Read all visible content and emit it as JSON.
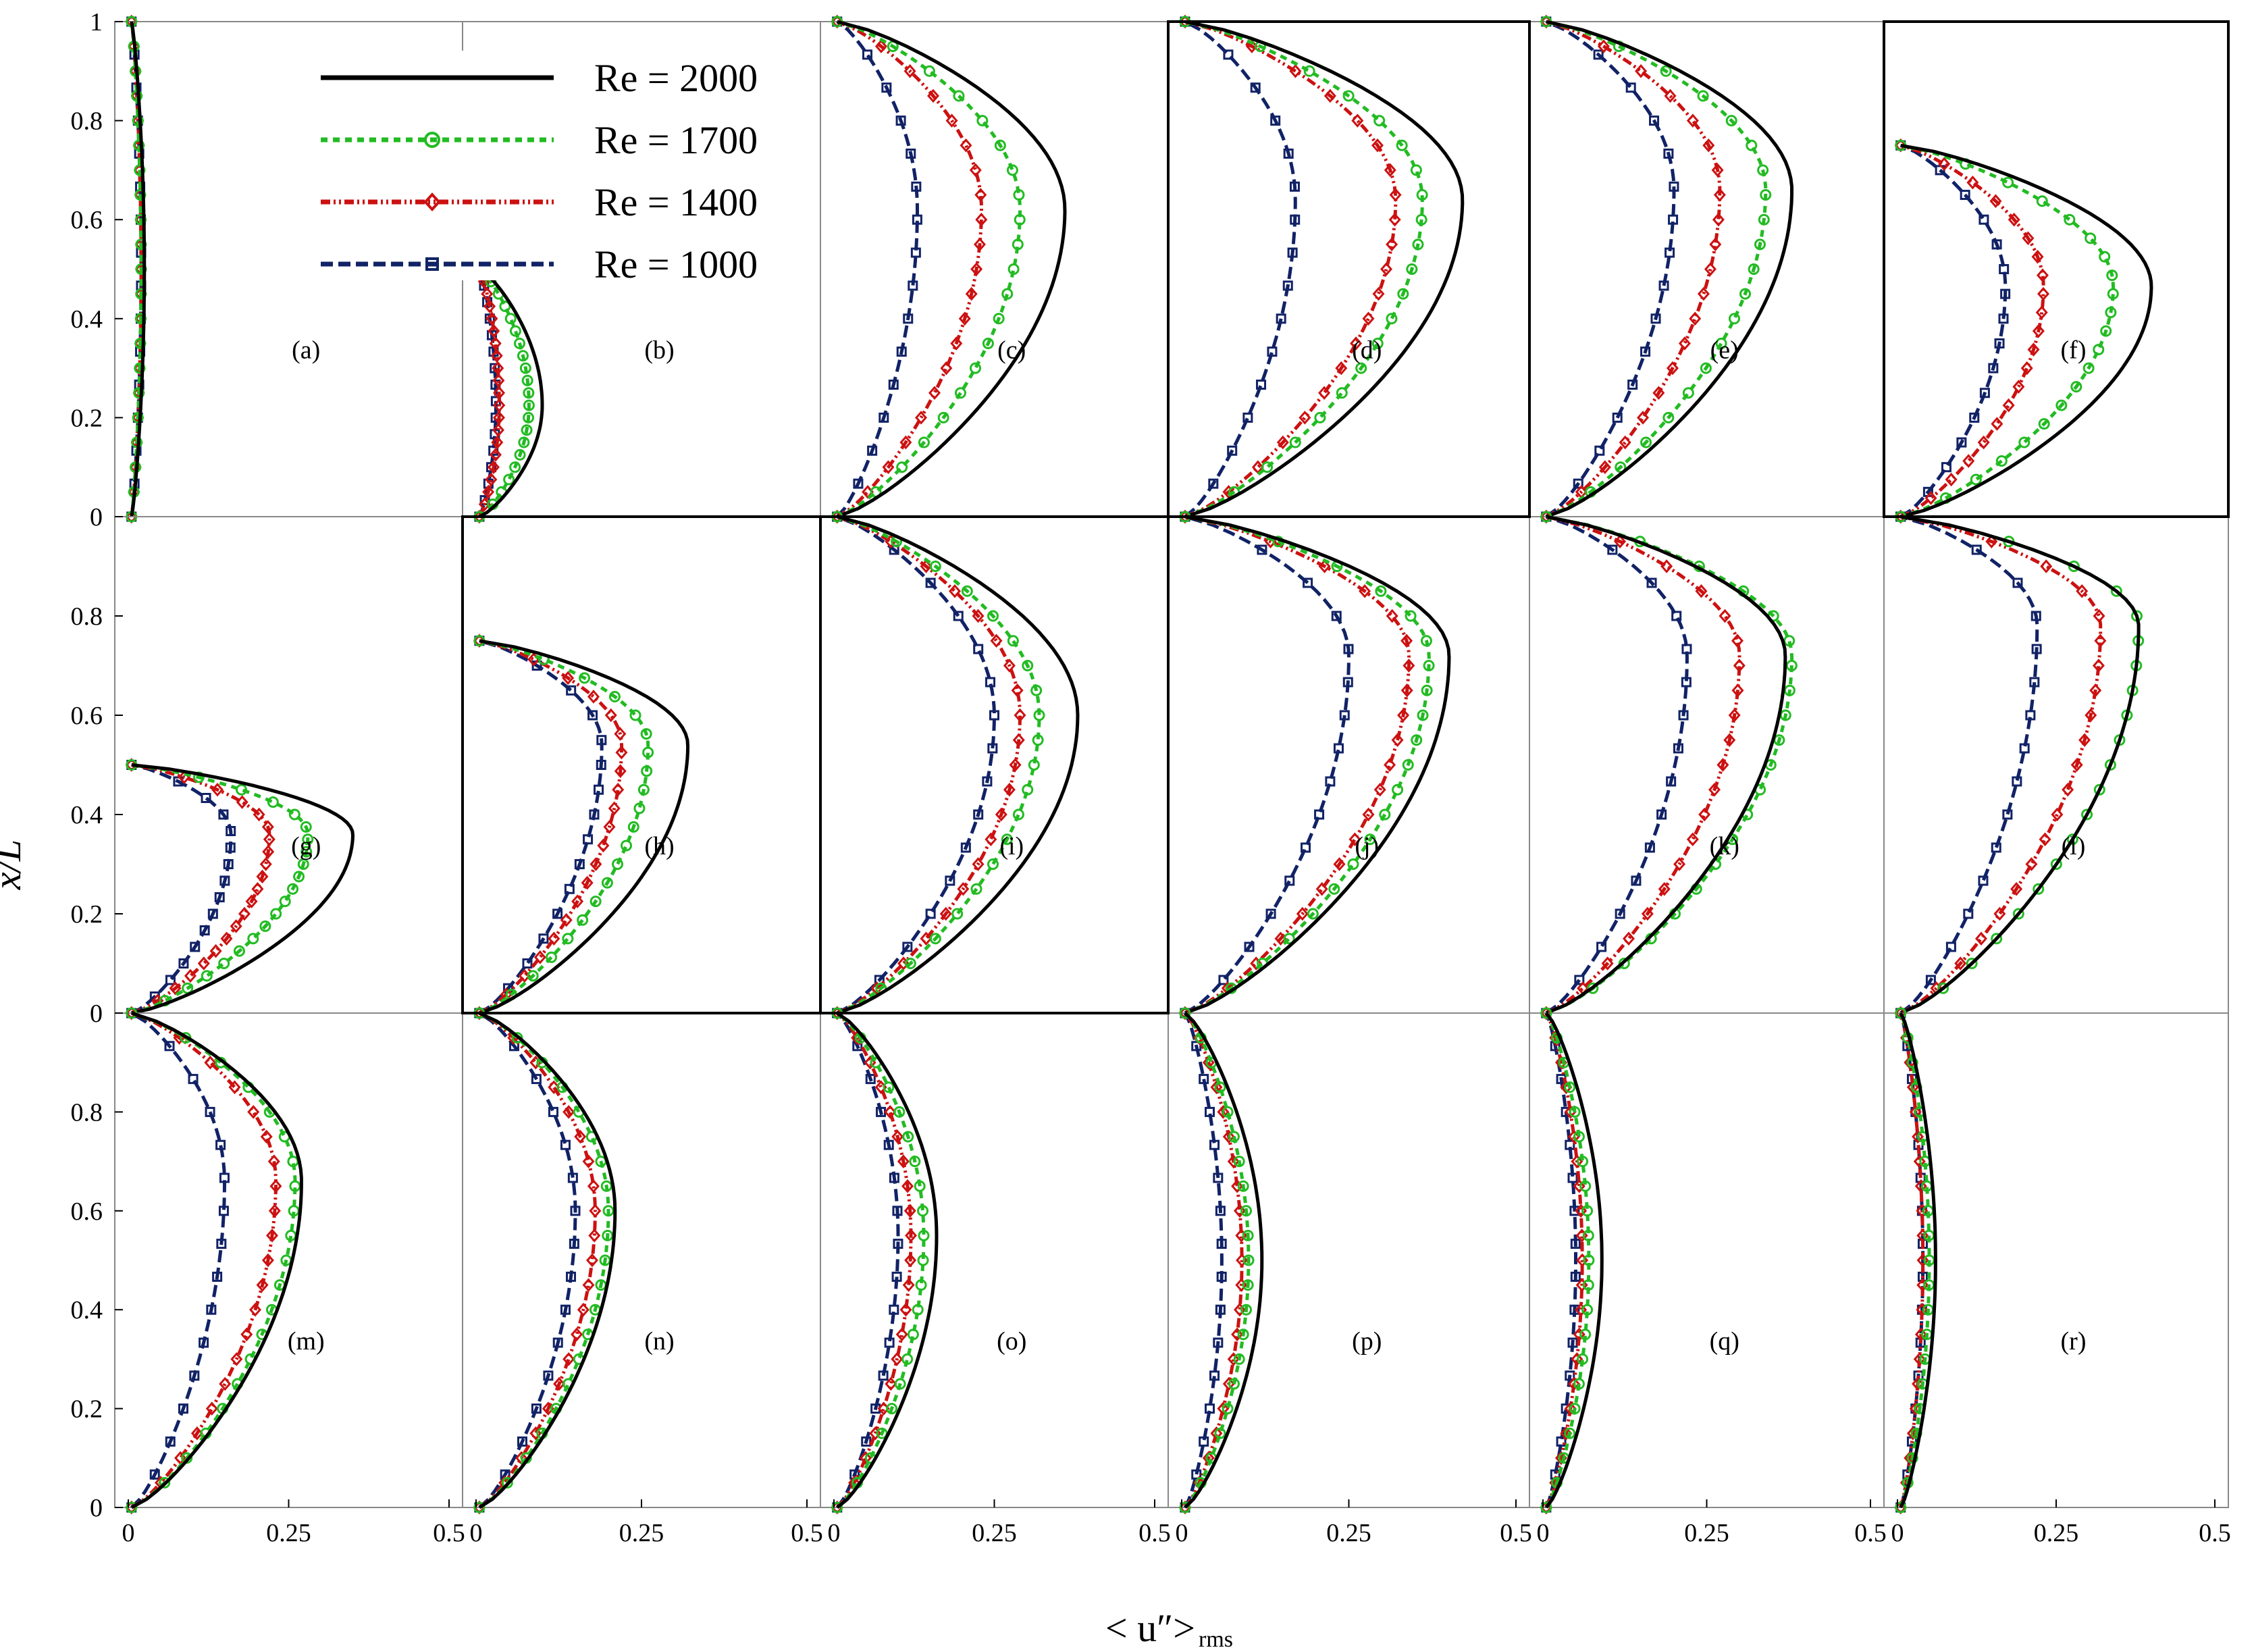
{
  "chart_data": {
    "type": "line",
    "title": "",
    "xlabel_main": "< u″>",
    "xlabel_sub": "rms",
    "ylabel": "x/L",
    "xlim": [
      0,
      0.5
    ],
    "ylim": [
      0,
      1
    ],
    "x_ticks": [
      "0",
      "0.25",
      "0.5"
    ],
    "y_ticks": [
      "0",
      "0.2",
      "0.4",
      "0.6",
      "0.8",
      "1"
    ],
    "series_styles": [
      {
        "name": "Re = 2000",
        "color": "#000000",
        "dash": "",
        "marker": "none"
      },
      {
        "name": "Re = 1700",
        "color": "#22bb22",
        "dash": "10 8",
        "marker": "circle"
      },
      {
        "name": "Re = 1400",
        "color": "#cc1111",
        "dash": "14 5 3 5 3 5",
        "marker": "diamond"
      },
      {
        "name": "Re = 1000",
        "color": "#112266",
        "dash": "18 8",
        "marker": "square"
      }
    ],
    "panels": [
      {
        "label": "(a)",
        "ymax": 1.0,
        "peak": [
          0.025,
          0.02,
          0.02,
          0.02
        ],
        "skew": 0.5
      },
      {
        "label": "(b)",
        "ymax": 0.5,
        "peak": [
          0.1,
          0.08,
          0.035,
          0.03
        ],
        "skew": 0.45
      },
      {
        "label": "(c)",
        "ymax": 1.0,
        "peak": [
          0.36,
          0.29,
          0.23,
          0.13
        ],
        "skew": 0.62
      },
      {
        "label": "(d)",
        "ymax": 1.0,
        "peak": [
          0.42,
          0.36,
          0.32,
          0.17
        ],
        "skew": 0.64
      },
      {
        "label": "(e)",
        "ymax": 1.0,
        "peak": [
          0.38,
          0.34,
          0.27,
          0.2
        ],
        "skew": 0.66
      },
      {
        "label": "(f)",
        "ymax": 0.75,
        "peak": [
          0.4,
          0.34,
          0.23,
          0.17
        ],
        "skew": 0.62
      },
      {
        "label": "(g)",
        "ymax": 0.5,
        "peak": [
          0.35,
          0.28,
          0.22,
          0.16
        ],
        "skew": 0.72
      },
      {
        "label": "(h)",
        "ymax": 0.75,
        "peak": [
          0.32,
          0.26,
          0.22,
          0.19
        ],
        "skew": 0.72
      },
      {
        "label": "(i)",
        "ymax": 1.0,
        "peak": [
          0.38,
          0.32,
          0.29,
          0.25
        ],
        "skew": 0.6
      },
      {
        "label": "(j)",
        "ymax": 1.0,
        "peak": [
          0.4,
          0.37,
          0.34,
          0.25
        ],
        "skew": 0.72
      },
      {
        "label": "(k)",
        "ymax": 1.0,
        "peak": [
          0.37,
          0.38,
          0.3,
          0.22
        ],
        "skew": 0.72
      },
      {
        "label": "(l)",
        "ymax": 1.0,
        "peak": [
          0.38,
          0.38,
          0.32,
          0.22
        ],
        "skew": 0.78
      },
      {
        "label": "(m)",
        "ymax": 1.0,
        "peak": [
          0.27,
          0.26,
          0.23,
          0.15
        ],
        "skew": 0.66
      },
      {
        "label": "(n)",
        "ymax": 1.0,
        "peak": [
          0.21,
          0.2,
          0.18,
          0.15
        ],
        "skew": 0.6
      },
      {
        "label": "(o)",
        "ymax": 1.0,
        "peak": [
          0.16,
          0.14,
          0.12,
          0.1
        ],
        "skew": 0.55
      },
      {
        "label": "(p)",
        "ymax": 1.0,
        "peak": [
          0.12,
          0.1,
          0.09,
          0.06
        ],
        "skew": 0.5
      },
      {
        "label": "(q)",
        "ymax": 1.0,
        "peak": [
          0.09,
          0.07,
          0.06,
          0.05
        ],
        "skew": 0.5
      },
      {
        "label": "(r)",
        "ymax": 1.0,
        "peak": [
          0.06,
          0.05,
          0.04,
          0.04
        ],
        "skew": 0.5
      }
    ]
  }
}
